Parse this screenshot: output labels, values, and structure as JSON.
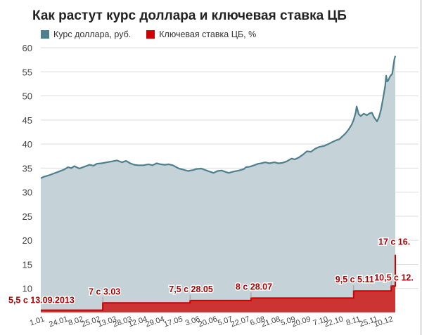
{
  "title": "Как растут курс доллара и ключевая ставка ЦБ",
  "legend": [
    {
      "label": "Курс доллара, руб.",
      "color": "#4e7f8e"
    },
    {
      "label": "Ключевая ставка ЦБ, %",
      "color": "#cc0000"
    }
  ],
  "chart_data": {
    "type": "area",
    "title": "Как растут курс доллара и ключевая ставка ЦБ",
    "xlabel": "",
    "ylabel": "",
    "ylim": [
      5,
      60
    ],
    "yticks": [
      10,
      15,
      20,
      25,
      30,
      35,
      40,
      45,
      50,
      55,
      60
    ],
    "x_range_days": [
      0,
      349
    ],
    "x_ticks": [
      {
        "label": "1.01",
        "day": 0
      },
      {
        "label": "24.01",
        "day": 23
      },
      {
        "label": "8.02",
        "day": 38
      },
      {
        "label": "25.02",
        "day": 55
      },
      {
        "label": "13.03",
        "day": 71
      },
      {
        "label": "28.03",
        "day": 86
      },
      {
        "label": "12.04",
        "day": 101
      },
      {
        "label": "29.04",
        "day": 118
      },
      {
        "label": "17.05",
        "day": 136
      },
      {
        "label": "3.06",
        "day": 153
      },
      {
        "label": "20.06",
        "day": 170
      },
      {
        "label": "5.07",
        "day": 185
      },
      {
        "label": "22.07",
        "day": 202
      },
      {
        "label": "6.08",
        "day": 217
      },
      {
        "label": "21.08",
        "day": 232
      },
      {
        "label": "5.09",
        "day": 247
      },
      {
        "label": "20.09",
        "day": 262
      },
      {
        "label": "7.10",
        "day": 279
      },
      {
        "label": "22.10",
        "day": 294
      },
      {
        "label": "8.11",
        "day": 311
      },
      {
        "label": "25.11",
        "day": 328
      },
      {
        "label": "10.12",
        "day": 343
      }
    ],
    "grid": true,
    "legend_position": "top-left",
    "series": [
      {
        "name": "Курс доллара, руб.",
        "color": "#4e7f8e",
        "fill": "#c5d3d8",
        "points": [
          [
            0,
            32.9
          ],
          [
            3,
            33.2
          ],
          [
            8,
            33.5
          ],
          [
            13,
            33.9
          ],
          [
            18,
            34.3
          ],
          [
            23,
            34.7
          ],
          [
            27,
            35.2
          ],
          [
            30,
            35.0
          ],
          [
            33,
            35.4
          ],
          [
            38,
            34.9
          ],
          [
            43,
            35.3
          ],
          [
            48,
            35.7
          ],
          [
            52,
            35.5
          ],
          [
            55,
            35.9
          ],
          [
            60,
            36.0
          ],
          [
            65,
            36.2
          ],
          [
            70,
            36.4
          ],
          [
            75,
            36.6
          ],
          [
            80,
            36.2
          ],
          [
            84,
            36.5
          ],
          [
            88,
            36.0
          ],
          [
            92,
            35.7
          ],
          [
            96,
            35.6
          ],
          [
            101,
            35.6
          ],
          [
            106,
            35.8
          ],
          [
            110,
            35.6
          ],
          [
            114,
            36.0
          ],
          [
            118,
            35.8
          ],
          [
            122,
            35.7
          ],
          [
            126,
            35.8
          ],
          [
            130,
            35.6
          ],
          [
            136,
            34.9
          ],
          [
            140,
            34.7
          ],
          [
            145,
            34.4
          ],
          [
            150,
            34.6
          ],
          [
            153,
            34.8
          ],
          [
            158,
            34.9
          ],
          [
            162,
            34.6
          ],
          [
            166,
            34.3
          ],
          [
            170,
            34.0
          ],
          [
            174,
            34.4
          ],
          [
            178,
            34.5
          ],
          [
            182,
            34.2
          ],
          [
            185,
            34.0
          ],
          [
            190,
            34.3
          ],
          [
            195,
            34.5
          ],
          [
            200,
            34.8
          ],
          [
            202,
            35.2
          ],
          [
            206,
            35.3
          ],
          [
            210,
            35.6
          ],
          [
            214,
            35.9
          ],
          [
            217,
            36.0
          ],
          [
            221,
            36.2
          ],
          [
            225,
            36.0
          ],
          [
            230,
            36.2
          ],
          [
            234,
            36.0
          ],
          [
            238,
            36.1
          ],
          [
            242,
            36.4
          ],
          [
            247,
            37.0
          ],
          [
            250,
            36.8
          ],
          [
            254,
            37.2
          ],
          [
            258,
            37.8
          ],
          [
            262,
            38.5
          ],
          [
            266,
            38.4
          ],
          [
            270,
            39.0
          ],
          [
            274,
            39.4
          ],
          [
            279,
            39.6
          ],
          [
            283,
            40.0
          ],
          [
            287,
            40.4
          ],
          [
            291,
            40.8
          ],
          [
            294,
            41.0
          ],
          [
            297,
            41.6
          ],
          [
            300,
            42.2
          ],
          [
            303,
            43.0
          ],
          [
            306,
            44.0
          ],
          [
            308,
            45.0
          ],
          [
            310,
            46.5
          ],
          [
            311,
            47.8
          ],
          [
            313,
            46.2
          ],
          [
            315,
            45.8
          ],
          [
            318,
            46.3
          ],
          [
            321,
            46.0
          ],
          [
            324,
            46.4
          ],
          [
            326,
            46.5
          ],
          [
            328,
            45.6
          ],
          [
            331,
            44.7
          ],
          [
            333,
            45.6
          ],
          [
            335,
            47.2
          ],
          [
            337,
            49.5
          ],
          [
            339,
            52.0
          ],
          [
            340,
            54.2
          ],
          [
            341,
            53.0
          ],
          [
            342,
            53.2
          ],
          [
            344,
            54.1
          ],
          [
            346,
            54.6
          ],
          [
            347,
            56.0
          ],
          [
            348,
            57.5
          ],
          [
            349,
            58.3
          ]
        ]
      },
      {
        "name": "Ключевая ставка ЦБ, %",
        "color": "#cc0000",
        "fill": "#cc3333",
        "steps": [
          {
            "day": 0,
            "value": 5.5
          },
          {
            "day": 61,
            "value": 7
          },
          {
            "day": 147,
            "value": 7.5
          },
          {
            "day": 207,
            "value": 8
          },
          {
            "day": 308,
            "value": 9.5
          },
          {
            "day": 345,
            "value": 10.5
          },
          {
            "day": 349,
            "value": 17
          }
        ],
        "end_day": 349
      }
    ],
    "annotations": [
      {
        "text": "5,5 с 13.09.2013",
        "day": 0,
        "value": 5.5
      },
      {
        "text": "7 с 3.03",
        "day": 61,
        "value": 7
      },
      {
        "text": "7,5 с 28.05",
        "day": 147,
        "value": 7.5
      },
      {
        "text": "8 с 28.07",
        "day": 207,
        "value": 8
      },
      {
        "text": "9,5 с 5.11",
        "day": 308,
        "value": 9.5
      },
      {
        "text": "10,5 с 12.",
        "day": 345,
        "value": 10.5
      },
      {
        "text": "17 с 16.",
        "day": 349,
        "value": 17
      }
    ]
  }
}
